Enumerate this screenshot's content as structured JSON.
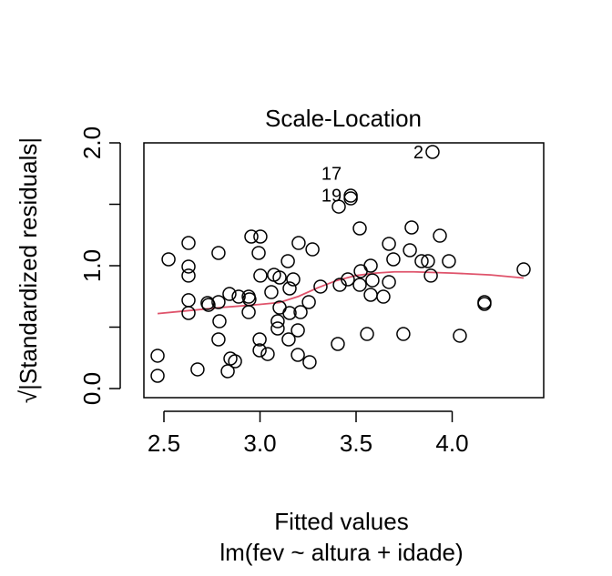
{
  "chart_data": {
    "type": "scatter",
    "title": "Scale-Location",
    "xlabel": "Fitted values",
    "subtitle": "lm(fev ~ altura + idade)",
    "ylabel": "√|Standardized residuals|",
    "xlim": [
      2.42,
      4.46
    ],
    "ylim": [
      -0.05,
      2.03
    ],
    "x_ticks": [
      2.5,
      3.0,
      3.5,
      4.0
    ],
    "x_tick_labels": [
      "2.5",
      "3.0",
      "3.5",
      "4.0"
    ],
    "y_ticks": [
      0.0,
      0.5,
      1.0,
      1.5,
      2.0
    ],
    "y_tick_labels": [
      "0.0",
      "",
      "1.0",
      "",
      "2.0"
    ],
    "smoother_color": "#DF536B",
    "points": [
      [
        2.467,
        0.267
      ],
      [
        2.467,
        0.104
      ],
      [
        2.524,
        1.052
      ],
      [
        2.628,
        1.185
      ],
      [
        2.628,
        0.993
      ],
      [
        2.628,
        0.919
      ],
      [
        2.628,
        0.719
      ],
      [
        2.628,
        0.615
      ],
      [
        2.675,
        0.156
      ],
      [
        2.784,
        1.104
      ],
      [
        2.727,
        0.696
      ],
      [
        2.732,
        0.681
      ],
      [
        2.784,
        0.704
      ],
      [
        2.789,
        0.548
      ],
      [
        2.784,
        0.4
      ],
      [
        2.832,
        0.141
      ],
      [
        2.846,
        0.244
      ],
      [
        2.87,
        0.222
      ],
      [
        2.841,
        0.77
      ],
      [
        2.889,
        0.748
      ],
      [
        2.941,
        0.748
      ],
      [
        2.945,
        0.726
      ],
      [
        2.941,
        0.622
      ],
      [
        2.955,
        1.237
      ],
      [
        3.002,
        1.237
      ],
      [
        2.993,
        1.104
      ],
      [
        2.998,
        0.4
      ],
      [
        2.998,
        0.311
      ],
      [
        3.04,
        0.281
      ],
      [
        3.002,
        0.919
      ],
      [
        3.059,
        0.785
      ],
      [
        3.073,
        0.926
      ],
      [
        3.102,
        0.904
      ],
      [
        3.145,
        1.037
      ],
      [
        3.173,
        0.889
      ],
      [
        3.154,
        0.815
      ],
      [
        3.102,
        0.659
      ],
      [
        3.092,
        0.548
      ],
      [
        3.092,
        0.489
      ],
      [
        3.154,
        0.615
      ],
      [
        3.149,
        0.4
      ],
      [
        3.201,
        1.185
      ],
      [
        3.273,
        1.133
      ],
      [
        3.254,
        0.704
      ],
      [
        3.211,
        0.622
      ],
      [
        3.197,
        0.474
      ],
      [
        3.197,
        0.274
      ],
      [
        3.258,
        0.215
      ],
      [
        3.315,
        0.83
      ],
      [
        3.415,
        0.844
      ],
      [
        3.405,
        0.363
      ],
      [
        3.41,
        1.481
      ],
      [
        3.472,
        1.57
      ],
      [
        3.472,
        1.548
      ],
      [
        3.519,
        1.304
      ],
      [
        3.789,
        1.311
      ],
      [
        3.671,
        1.178
      ],
      [
        3.78,
        1.126
      ],
      [
        3.936,
        1.244
      ],
      [
        3.694,
        1.052
      ],
      [
        3.841,
        1.037
      ],
      [
        3.874,
        1.037
      ],
      [
        3.983,
        1.037
      ],
      [
        4.372,
        0.97
      ],
      [
        3.889,
        0.919
      ],
      [
        3.576,
        1.0
      ],
      [
        3.524,
        0.956
      ],
      [
        3.457,
        0.889
      ],
      [
        3.585,
        0.881
      ],
      [
        3.519,
        0.844
      ],
      [
        3.671,
        0.867
      ],
      [
        3.576,
        0.763
      ],
      [
        3.642,
        0.748
      ],
      [
        4.168,
        0.704
      ],
      [
        4.168,
        0.689
      ],
      [
        3.557,
        0.444
      ],
      [
        3.746,
        0.444
      ],
      [
        4.04,
        0.43
      ],
      [
        3.898,
        1.926
      ]
    ],
    "point_labels": [
      {
        "text": "2",
        "x": 3.898,
        "y": 1.926
      },
      {
        "text": "19",
        "x": 3.472,
        "y": 1.575
      },
      {
        "text": "17",
        "x": 3.472,
        "y": 1.548
      }
    ],
    "smoother": [
      [
        2.467,
        0.61
      ],
      [
        2.6,
        0.63
      ],
      [
        2.8,
        0.66
      ],
      [
        3.0,
        0.685
      ],
      [
        3.1,
        0.7
      ],
      [
        3.2,
        0.75
      ],
      [
        3.3,
        0.82
      ],
      [
        3.4,
        0.88
      ],
      [
        3.5,
        0.92
      ],
      [
        3.6,
        0.94
      ],
      [
        3.7,
        0.95
      ],
      [
        3.8,
        0.95
      ],
      [
        4.0,
        0.94
      ],
      [
        4.2,
        0.925
      ],
      [
        4.372,
        0.9
      ]
    ]
  }
}
